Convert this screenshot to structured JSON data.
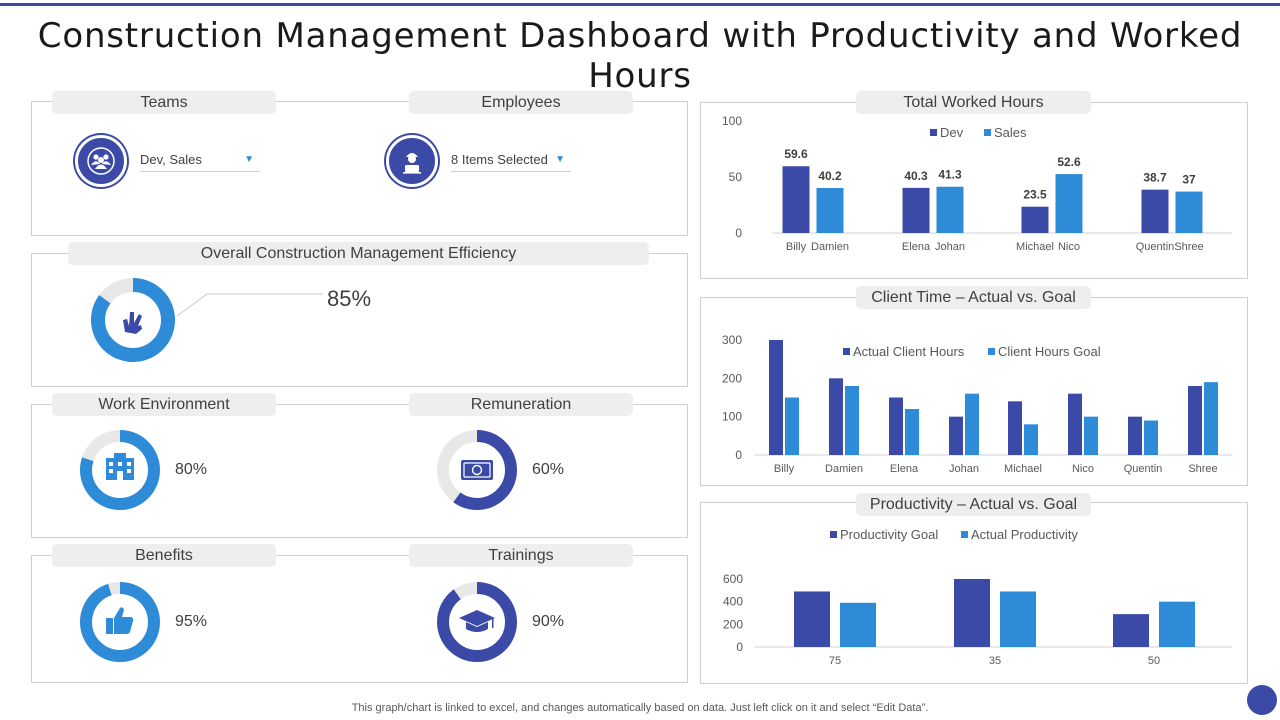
{
  "title": "Construction Management Dashboard with Productivity and Worked Hours",
  "filters": {
    "teams": {
      "label": "Teams",
      "value": "Dev,  Sales",
      "icon": "team-icon"
    },
    "employees": {
      "label": "Employees",
      "value": "8 Items Selected",
      "icon": "worker-icon"
    }
  },
  "efficiency": {
    "label": "Overall Construction Management Efficiency",
    "value": "85%",
    "percent": 85,
    "icon": "peace-hand-icon"
  },
  "kpis": [
    {
      "label": "Work Environment",
      "value": "80%",
      "percent": 80,
      "icon": "building-icon"
    },
    {
      "label": "Remuneration",
      "value": "60%",
      "percent": 60,
      "icon": "money-icon"
    },
    {
      "label": "Benefits",
      "value": "95%",
      "percent": 95,
      "icon": "thumbs-up-icon"
    },
    {
      "label": "Trainings",
      "value": "90%",
      "percent": 90,
      "icon": "graduation-cap-icon"
    }
  ],
  "colors": {
    "dark": "#3b4aa6",
    "light": "#2e8bd8",
    "track": "#e8e8e8"
  },
  "footnote": "This graph/chart is linked to excel,  and changes automatically based on data. Just left click on it and select “Edit Data”.",
  "chart_data": [
    {
      "id": "worked",
      "type": "bar",
      "title": "Total Worked Hours",
      "categories": [
        "Billy",
        "Damien",
        "Elena",
        "Johan",
        "Michael",
        "Nico",
        "Quentin",
        "Shree"
      ],
      "series": [
        {
          "name": "Dev",
          "values": [
            59.6,
            null,
            40.3,
            null,
            23.5,
            null,
            38.7,
            null
          ]
        },
        {
          "name": "Sales",
          "values": [
            null,
            40.2,
            null,
            41.3,
            null,
            52.6,
            null,
            37
          ]
        }
      ],
      "ylim": [
        0,
        100
      ],
      "yticks": [
        "0",
        "50",
        "100"
      ],
      "data_labels": true
    },
    {
      "id": "client",
      "type": "bar",
      "title": "Client Time – Actual vs. Goal",
      "categories": [
        "Billy",
        "Damien",
        "Elena",
        "Johan",
        "Michael",
        "Nico",
        "Quentin",
        "Shree"
      ],
      "series": [
        {
          "name": "Actual Client Hours",
          "values": [
            300,
            200,
            150,
            100,
            140,
            160,
            100,
            180
          ]
        },
        {
          "name": "Client Hours Goal",
          "values": [
            150,
            180,
            120,
            160,
            80,
            100,
            90,
            190
          ]
        }
      ],
      "ylim": [
        0,
        300
      ],
      "yticks": [
        "0",
        "100",
        "200",
        "300"
      ]
    },
    {
      "id": "prod",
      "type": "bar",
      "title": "Productivity – Actual vs. Goal",
      "categories": [
        "75",
        "35",
        "50"
      ],
      "series": [
        {
          "name": "Productivity Goal",
          "values": [
            490,
            600,
            290
          ]
        },
        {
          "name": "Actual Productivity",
          "values": [
            390,
            490,
            400
          ]
        }
      ],
      "ylim": [
        0,
        600
      ],
      "yticks": [
        "0",
        "200",
        "400",
        "600"
      ]
    }
  ]
}
